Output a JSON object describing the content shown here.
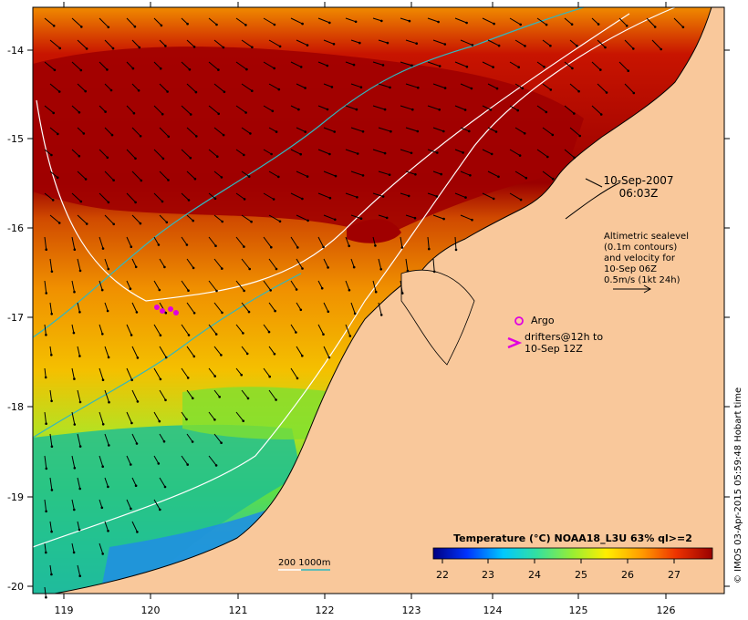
{
  "map": {
    "lat_ticks": [
      "-14",
      "-15",
      "-16",
      "-17",
      "-18",
      "-19",
      "-20"
    ],
    "lon_ticks": [
      "119",
      "120",
      "121",
      "122",
      "123",
      "124",
      "125",
      "126"
    ],
    "date": "10-Sep-2007",
    "time": "06:03Z",
    "altimetric_lines": [
      "Altimetric sealevel",
      "(0.1m contours)",
      "and velocity for",
      "10-Sep 06Z",
      "0.5m/s (1kt 24h)"
    ],
    "argo_label": "Argo",
    "drifters_lines": [
      "drifters@12h to",
      "10-Sep 12Z"
    ],
    "depth_label": "200  1000m",
    "credit": "© IMOS 03-Apr-2015 05:59:48 Hobart time"
  },
  "colorbar": {
    "title": "Temperature (°C) NOAA18_L3U 63% ql>=2",
    "ticks": [
      "22",
      "23",
      "24",
      "25",
      "26",
      "27"
    ],
    "stops": [
      "#000080",
      "#0033ff",
      "#00c8ff",
      "#33e0a0",
      "#99ee33",
      "#ffee00",
      "#ff9900",
      "#ee3300",
      "#990000"
    ]
  },
  "colors": {
    "land": "#f9c89b",
    "isobath_200": "#ffffff",
    "isobath_1000": "#30b8c0",
    "argo": "#e000e0",
    "drifter": "#e000e0"
  }
}
